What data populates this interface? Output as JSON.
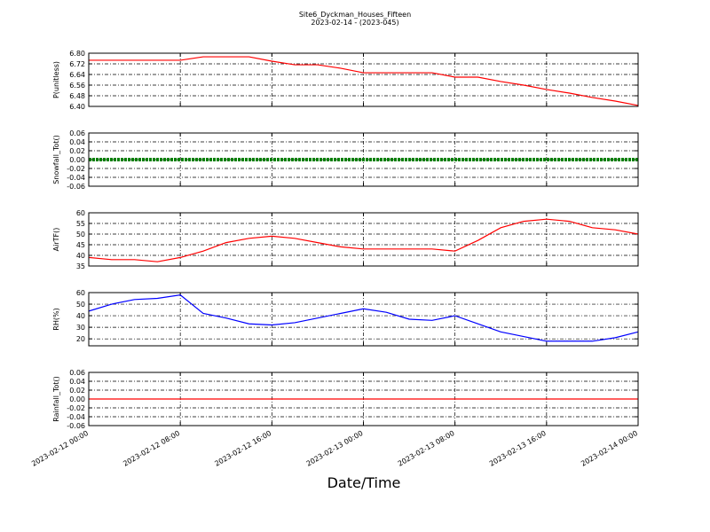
{
  "chart_data": {
    "type": "line",
    "title": "Site6_Dyckman_Houses_Fifteen",
    "subtitle": "2023-02-14 - (2023-045)",
    "xlabel": "Date/Time",
    "grid": true,
    "x": [
      "2023-02-12 00:00",
      "2023-02-12 02:00",
      "2023-02-12 04:00",
      "2023-02-12 06:00",
      "2023-02-12 08:00",
      "2023-02-12 10:00",
      "2023-02-12 12:00",
      "2023-02-12 14:00",
      "2023-02-12 16:00",
      "2023-02-12 18:00",
      "2023-02-12 20:00",
      "2023-02-12 22:00",
      "2023-02-13 00:00",
      "2023-02-13 02:00",
      "2023-02-13 04:00",
      "2023-02-13 06:00",
      "2023-02-13 08:00",
      "2023-02-13 10:00",
      "2023-02-13 12:00",
      "2023-02-13 14:00",
      "2023-02-13 16:00",
      "2023-02-13 18:00",
      "2023-02-13 20:00",
      "2023-02-13 22:00",
      "2023-02-14 00:00"
    ],
    "xlim": [
      "2023-02-12 00:00",
      "2023-02-14 00:00"
    ],
    "xticks": [
      "2023-02-12 00:00",
      "2023-02-12 08:00",
      "2023-02-12 16:00",
      "2023-02-13 00:00",
      "2023-02-13 08:00",
      "2023-02-13 16:00",
      "2023-02-14 00:00"
    ],
    "panels": [
      {
        "ylabel": "P(unitless)",
        "ylim": [
          6.4,
          6.8
        ],
        "yticks": [
          {
            "value": 6.4,
            "label": "6.40"
          },
          6.48,
          6.56,
          6.64,
          6.72,
          {
            "value": 6.8,
            "label": "6.80"
          }
        ],
        "series": [
          {
            "name": "P",
            "color": "#ff0000",
            "values": [
              6.747,
              6.747,
              6.747,
              6.747,
              6.747,
              6.773,
              6.773,
              6.773,
              6.74,
              6.713,
              6.713,
              6.687,
              6.653,
              6.653,
              6.653,
              6.653,
              6.62,
              6.62,
              6.587,
              6.56,
              6.527,
              6.5,
              6.467,
              6.44,
              6.407
            ]
          }
        ]
      },
      {
        "ylabel": "Snowfall_Tot()",
        "ylim": [
          -0.06,
          0.06
        ],
        "yticks": [
          -0.06,
          -0.04,
          -0.02,
          {
            "value": 0,
            "label": "0.00"
          },
          0.02,
          0.04,
          0.06
        ],
        "series": [
          {
            "name": "Snowfall_Tot",
            "color": "#008000",
            "markers": true,
            "values": [
              0,
              0,
              0,
              0,
              0,
              0,
              0,
              0,
              0,
              0,
              0,
              0,
              0,
              0,
              0,
              0,
              0,
              0,
              0,
              0,
              0,
              0,
              0,
              0,
              0
            ]
          }
        ]
      },
      {
        "ylabel": "AirTF()",
        "ylim": [
          35,
          60
        ],
        "yticks": [
          35,
          40,
          45,
          50,
          55,
          60
        ],
        "series": [
          {
            "name": "AirTF",
            "color": "#ff0000",
            "values": [
              39,
              38,
              38,
              37,
              39,
              42,
              46,
              48,
              49,
              48,
              46,
              44,
              43,
              43,
              43,
              43,
              42,
              47,
              53,
              56,
              57,
              56,
              53,
              52,
              50
            ]
          }
        ]
      },
      {
        "ylabel": "RH(%)",
        "ylim": [
          14,
          60
        ],
        "yticks": [
          20,
          30,
          40,
          50,
          60
        ],
        "series": [
          {
            "name": "RH",
            "color": "#0000ff",
            "values": [
              44,
              50,
              54,
              55,
              58,
              42,
              38,
              33,
              32,
              34,
              38,
              42,
              46,
              43,
              37,
              36,
              40,
              33,
              26,
              22,
              18,
              18,
              18,
              21,
              26
            ]
          }
        ]
      },
      {
        "ylabel": "Rainfall_Tot()",
        "ylim": [
          -0.06,
          0.06
        ],
        "yticks": [
          -0.06,
          -0.04,
          -0.02,
          {
            "value": 0,
            "label": "0.00"
          },
          0.02,
          0.04,
          0.06
        ],
        "series": [
          {
            "name": "Rainfall_Tot",
            "color": "#ff0000",
            "values": [
              0,
              0,
              0,
              0,
              0,
              0,
              0,
              0,
              0,
              0,
              0,
              0,
              0,
              0,
              0,
              0,
              0,
              0,
              0,
              0,
              0,
              0,
              0,
              0,
              0
            ]
          }
        ]
      }
    ]
  }
}
